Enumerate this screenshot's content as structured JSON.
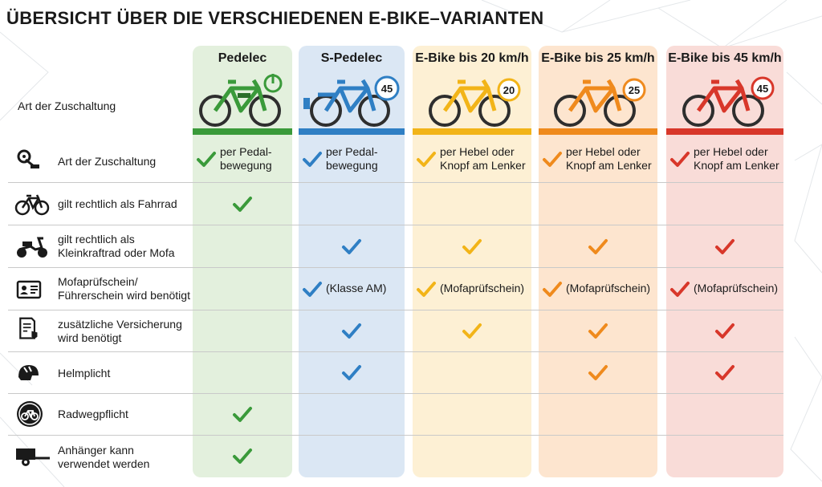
{
  "title": "ÜBERSICHT ÜBER DIE VERSCHIEDENEN E-BIKE–VARIANTEN",
  "header_label": "Art der Zuschaltung",
  "colors": {
    "green": "#3a9a3a",
    "blue": "#2f7fc4",
    "yellow": "#f2b418",
    "orange": "#ef8a1d",
    "red": "#d8372a"
  },
  "columns": [
    {
      "name": "Pedelec",
      "badge": ""
    },
    {
      "name": "S-Pedelec",
      "badge": "45"
    },
    {
      "name": "E-Bike bis 20 km/h",
      "badge": "20"
    },
    {
      "name": "E-Bike bis 25 km/h",
      "badge": "25"
    },
    {
      "name": "E-Bike bis 45 km/h",
      "badge": "45"
    }
  ],
  "rows": [
    {
      "icon": "pedal-gear-icon",
      "label1": "Art der Zuschaltung",
      "label2": "",
      "cells": [
        {
          "check": true,
          "line1": "per Pedal-",
          "line2": "bewegung"
        },
        {
          "check": true,
          "line1": "per Pedal-",
          "line2": "bewegung"
        },
        {
          "check": true,
          "line1": "per Hebel oder",
          "line2": "Knopf am Lenker"
        },
        {
          "check": true,
          "line1": "per Hebel oder",
          "line2": "Knopf am Lenker"
        },
        {
          "check": true,
          "line1": "per Hebel oder",
          "line2": "Knopf am Lenker"
        }
      ]
    },
    {
      "icon": "bicycle-icon",
      "label1": "gilt rechtlich als Fahrrad",
      "label2": "",
      "cells": [
        {
          "check": true,
          "line1": "",
          "line2": ""
        },
        {
          "check": false,
          "line1": "",
          "line2": ""
        },
        {
          "check": false,
          "line1": "",
          "line2": ""
        },
        {
          "check": false,
          "line1": "",
          "line2": ""
        },
        {
          "check": false,
          "line1": "",
          "line2": ""
        }
      ]
    },
    {
      "icon": "moped-icon",
      "label1": "gilt rechtlich als",
      "label2": "Kleinkraftrad oder Mofa",
      "cells": [
        {
          "check": false,
          "line1": "",
          "line2": ""
        },
        {
          "check": true,
          "line1": "",
          "line2": ""
        },
        {
          "check": true,
          "line1": "",
          "line2": ""
        },
        {
          "check": true,
          "line1": "",
          "line2": ""
        },
        {
          "check": true,
          "line1": "",
          "line2": ""
        }
      ]
    },
    {
      "icon": "id-card-icon",
      "label1": "Mofaprüfschein/",
      "label2": "Führerschein wird benötigt",
      "cells": [
        {
          "check": false,
          "line1": "",
          "line2": ""
        },
        {
          "check": true,
          "line1": "(Klasse AM)",
          "line2": ""
        },
        {
          "check": true,
          "line1": "(Mofaprüfschein)",
          "line2": ""
        },
        {
          "check": true,
          "line1": "(Mofaprüfschein)",
          "line2": ""
        },
        {
          "check": true,
          "line1": "(Mofaprüfschein)",
          "line2": ""
        }
      ]
    },
    {
      "icon": "insurance-document-icon",
      "label1": "zusätzliche Versicherung",
      "label2": "wird benötigt",
      "cells": [
        {
          "check": false,
          "line1": "",
          "line2": ""
        },
        {
          "check": true,
          "line1": "",
          "line2": ""
        },
        {
          "check": true,
          "line1": "",
          "line2": ""
        },
        {
          "check": true,
          "line1": "",
          "line2": ""
        },
        {
          "check": true,
          "line1": "",
          "line2": ""
        }
      ]
    },
    {
      "icon": "helmet-icon",
      "label1": "Helmplicht",
      "label2": "",
      "cells": [
        {
          "check": false,
          "line1": "",
          "line2": ""
        },
        {
          "check": true,
          "line1": "",
          "line2": ""
        },
        {
          "check": false,
          "line1": "",
          "line2": ""
        },
        {
          "check": true,
          "line1": "",
          "line2": ""
        },
        {
          "check": true,
          "line1": "",
          "line2": ""
        }
      ]
    },
    {
      "icon": "bike-path-sign-icon",
      "label1": "Radwegpflicht",
      "label2": "",
      "cells": [
        {
          "check": true,
          "line1": "",
          "line2": ""
        },
        {
          "check": false,
          "line1": "",
          "line2": ""
        },
        {
          "check": false,
          "line1": "",
          "line2": ""
        },
        {
          "check": false,
          "line1": "",
          "line2": ""
        },
        {
          "check": false,
          "line1": "",
          "line2": ""
        }
      ]
    },
    {
      "icon": "trailer-icon",
      "label1": "Anhänger kann",
      "label2": "verwendet werden",
      "cells": [
        {
          "check": true,
          "line1": "",
          "line2": ""
        },
        {
          "check": false,
          "line1": "",
          "line2": ""
        },
        {
          "check": false,
          "line1": "",
          "line2": ""
        },
        {
          "check": false,
          "line1": "",
          "line2": ""
        },
        {
          "check": false,
          "line1": "",
          "line2": ""
        }
      ]
    }
  ]
}
